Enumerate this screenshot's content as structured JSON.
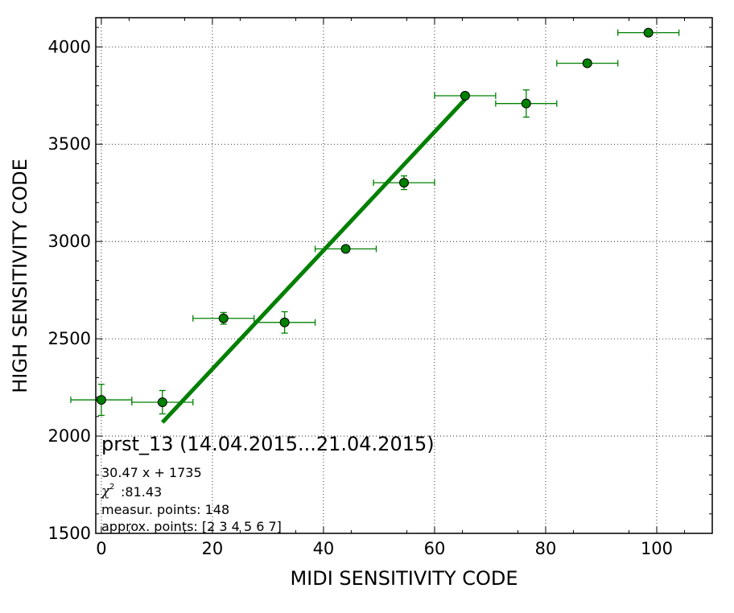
{
  "chart_data": {
    "type": "scatter",
    "title": "",
    "xlabel": "MIDI SENSITIVITY CODE",
    "ylabel": "HIGH SENSITIVITY CODE",
    "xlim": [
      -1,
      110
    ],
    "ylim": [
      1500,
      4150
    ],
    "x_ticks": [
      0,
      20,
      40,
      60,
      80,
      100
    ],
    "y_ticks": [
      1500,
      2000,
      2500,
      3000,
      3500,
      4000
    ],
    "grid": true,
    "grid_style": "dotted",
    "color": "#008000",
    "points": [
      {
        "x": 0,
        "y": 2186,
        "xerr": 5.5,
        "yerr": 80
      },
      {
        "x": 11,
        "y": 2174,
        "xerr": 5.5,
        "yerr": 60
      },
      {
        "x": 22,
        "y": 2605,
        "xerr": 5.5,
        "yerr": 30
      },
      {
        "x": 33,
        "y": 2584,
        "xerr": 5.5,
        "yerr": 55
      },
      {
        "x": 44,
        "y": 2962,
        "xerr": 5.5,
        "yerr": 0
      },
      {
        "x": 54.5,
        "y": 3302,
        "xerr": 5.5,
        "yerr": 35
      },
      {
        "x": 65.5,
        "y": 3749,
        "xerr": 5.5,
        "yerr": 0
      },
      {
        "x": 76.5,
        "y": 3709,
        "xerr": 5.5,
        "yerr": 70
      },
      {
        "x": 87.5,
        "y": 3916,
        "xerr": 5.5,
        "yerr": 0
      },
      {
        "x": 98.5,
        "y": 4073,
        "xerr": 5.5,
        "yerr": 0
      }
    ],
    "fit": {
      "slope": 30.47,
      "intercept": 1735,
      "x_range": [
        11,
        65.5
      ],
      "color": "#008000"
    },
    "annotations": {
      "title": "prst_13 (14.04.2015...21.04.2015)",
      "equation": "30.47 x + 1735",
      "chi2_symbol": "χ",
      "chi2_exp": "2",
      "chi2_value": ":81.43",
      "measur_points": "measur. points: 148",
      "approx_points": "approx. points: [2 3 4 5 6 7]"
    }
  }
}
